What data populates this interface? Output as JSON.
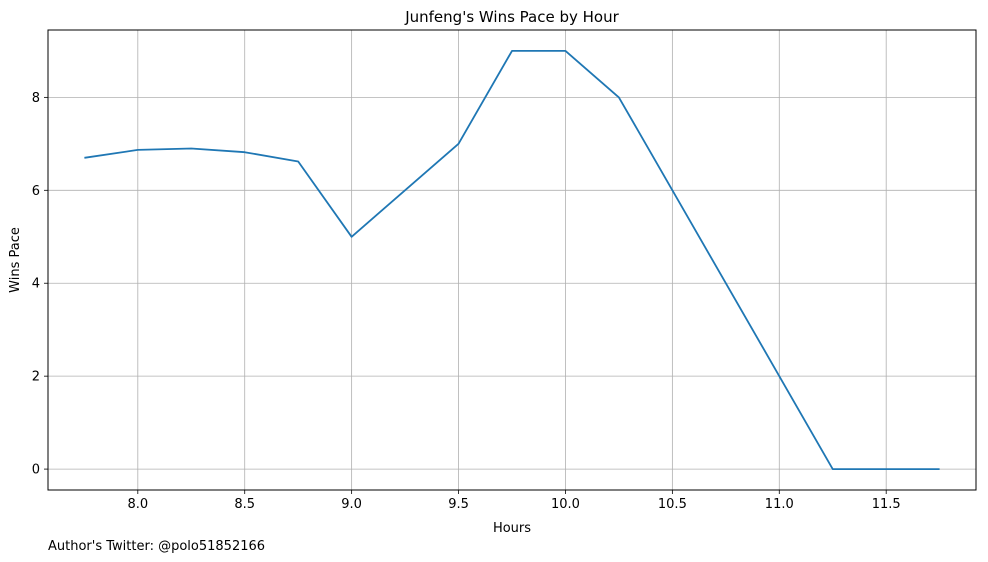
{
  "chart_data": {
    "type": "line",
    "title": "Junfeng's Wins Pace by Hour",
    "xlabel": "Hours",
    "ylabel": "Wins Pace",
    "xlim": [
      7.58,
      11.92
    ],
    "ylim": [
      -0.45,
      9.45
    ],
    "xticks": [
      8.0,
      8.5,
      9.0,
      9.5,
      10.0,
      10.5,
      11.0,
      11.5
    ],
    "xtick_labels": [
      "8.0",
      "8.5",
      "9.0",
      "9.5",
      "10.0",
      "10.5",
      "11.0",
      "11.5"
    ],
    "yticks": [
      0,
      2,
      4,
      6,
      8
    ],
    "ytick_labels": [
      "0",
      "2",
      "4",
      "6",
      "8"
    ],
    "grid": true,
    "legend": "none",
    "series": [
      {
        "color": "#1f77b4",
        "x": [
          7.75,
          8.0,
          8.25,
          8.5,
          8.75,
          9.0,
          9.5,
          9.75,
          10.0,
          10.25,
          10.5,
          11.0,
          11.25,
          11.5,
          11.75
        ],
        "y": [
          6.7,
          6.87,
          6.9,
          6.82,
          6.62,
          5.0,
          7.0,
          9.0,
          9.0,
          8.0,
          6.0,
          2.0,
          0.0,
          0.0,
          0.0
        ]
      }
    ]
  },
  "footer": {
    "text": "Author's Twitter: @polo51852166"
  }
}
